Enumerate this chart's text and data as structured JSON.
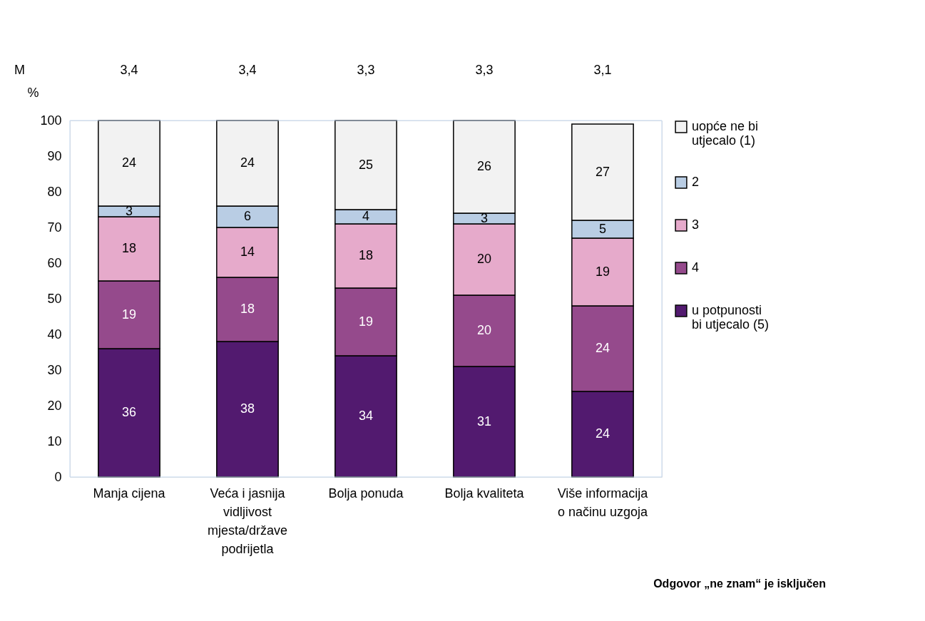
{
  "chart_data": {
    "type": "bar",
    "stacked": true,
    "ylabel": "%",
    "categories": [
      "Manja cijena",
      "Veća i jasnija vidljivost mjesta/države podrijetla",
      "Bolja ponuda",
      "Bolja kvaliteta",
      "Više informacija o načinu uzgoja"
    ],
    "series": [
      {
        "name": "u potpunosti bi utjecalo  (5)",
        "color": "#521a6f",
        "values": [
          36,
          38,
          34,
          31,
          24
        ]
      },
      {
        "name": "4",
        "color": "#954a8c",
        "values": [
          19,
          18,
          19,
          20,
          24
        ]
      },
      {
        "name": "3",
        "color": "#e6aacb",
        "values": [
          18,
          14,
          18,
          20,
          19
        ]
      },
      {
        "name": "2",
        "color": "#b9cde4",
        "values": [
          3,
          6,
          4,
          3,
          5
        ]
      },
      {
        "name": "uopće ne bi utjecalo  (1)",
        "color": "#f2f2f2",
        "values": [
          24,
          24,
          25,
          26,
          27
        ]
      }
    ],
    "ylim": [
      0,
      100
    ],
    "yticks": [
      0,
      10,
      20,
      30,
      40,
      50,
      60,
      70,
      80,
      90,
      100
    ],
    "grid": false,
    "legend": "right",
    "data_labels": true,
    "annotations": [
      "M",
      "3,4",
      "3,4",
      "3,3",
      "3,3",
      "3,1",
      "Odgovor „ne znam“ je isključen"
    ]
  }
}
